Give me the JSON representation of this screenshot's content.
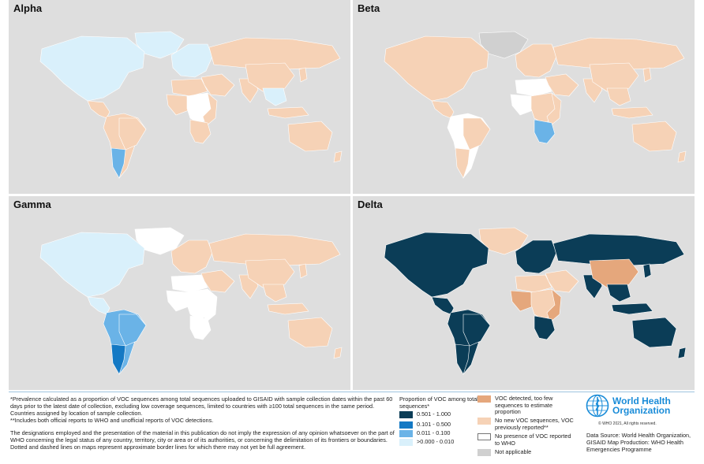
{
  "panels": [
    {
      "id": "alpha",
      "title": "Alpha"
    },
    {
      "id": "beta",
      "title": "Beta"
    },
    {
      "id": "gamma",
      "title": "Gamma"
    },
    {
      "id": "delta",
      "title": "Delta"
    }
  ],
  "colors": {
    "ocean": "#dedede",
    "na": "#d0d0d0",
    "cat1": "#0b3d57",
    "cat2": "#1479c4",
    "cat3": "#6ab3e7",
    "cat4": "#d9f0fb",
    "detected_few": "#e5a77c",
    "previously": "#f6d2b6",
    "none": "#ffffff"
  },
  "map_fills": {
    "alpha": {
      "north_america": "cat4",
      "greenland": "cat4",
      "central_america": "previously",
      "south_america": "previously",
      "brazil": "previously",
      "argentina": "cat3",
      "europe": "cat4",
      "russia": "previously",
      "middle_east": "previously",
      "africa_north": "previously",
      "africa_west": "previously",
      "africa_central": "none",
      "africa_east": "previously",
      "africa_south": "previously",
      "india": "previously",
      "china": "previously",
      "se_asia": "cat4",
      "japan": "previously",
      "indonesia": "previously",
      "australia": "previously",
      "new_zealand": "previously"
    },
    "beta": {
      "north_america": "previously",
      "greenland": "na",
      "central_america": "previously",
      "south_america": "none",
      "brazil": "previously",
      "argentina": "previously",
      "europe": "previously",
      "russia": "previously",
      "middle_east": "previously",
      "africa_north": "none",
      "africa_west": "none",
      "africa_central": "previously",
      "africa_east": "previously",
      "africa_south": "cat3",
      "india": "previously",
      "china": "previously",
      "se_asia": "previously",
      "japan": "previously",
      "indonesia": "previously",
      "australia": "previously",
      "new_zealand": "previously"
    },
    "gamma": {
      "north_america": "cat4",
      "greenland": "none",
      "central_america": "cat4",
      "south_america": "cat3",
      "brazil": "cat3",
      "argentina": "cat2",
      "europe": "previously",
      "russia": "previously",
      "middle_east": "previously",
      "africa_north": "none",
      "africa_west": "none",
      "africa_central": "none",
      "africa_east": "none",
      "africa_south": "none",
      "india": "previously",
      "china": "previously",
      "se_asia": "previously",
      "japan": "previously",
      "indonesia": "previously",
      "australia": "previously",
      "new_zealand": "previously"
    },
    "delta": {
      "north_america": "cat1",
      "greenland": "previously",
      "central_america": "cat1",
      "south_america": "cat1",
      "brazil": "cat1",
      "argentina": "cat1",
      "europe": "cat1",
      "russia": "cat1",
      "middle_east": "previously",
      "africa_north": "previously",
      "africa_west": "detected_few",
      "africa_central": "previously",
      "africa_east": "detected_few",
      "africa_south": "cat1",
      "india": "cat1",
      "china": "detected_few",
      "se_asia": "cat1",
      "japan": "cat1",
      "indonesia": "cat1",
      "australia": "cat1",
      "new_zealand": "cat1"
    }
  },
  "footnotes": {
    "line1": "*Prevalence calculated as a proportion of VOC sequences among total sequences uploaded to GISAID with sample collection dates within the past 60 days prior to the latest date of collection, excluding low coverage sequences, limited to countries with ≥100 total sequences in the same period. Countries assigned by location of sample collection.",
    "line2": "**Includes both official reports to WHO and unofficial reports of VOC detections.",
    "disclaimer": "The designations employed and the presentation of the material in this publication do not imply the expression of any opinion whatsoever on the part of WHO concerning the legal status of any country, territory, city or area or of its authorities, or concerning the delimitation of its frontiers or boundaries. Dotted and dashed lines on maps represent approximate border lines for which there may not yet be full agreement."
  },
  "legend": {
    "title": "Proportion of VOC among total sequences*",
    "ranges": [
      {
        "label": "0.501 - 1.000",
        "color": "#0b3d57"
      },
      {
        "label": "0.101 - 0.500",
        "color": "#1479c4"
      },
      {
        "label": "0.011 - 0.100",
        "color": "#6ab3e7"
      },
      {
        "label": ">0.000 - 0.010",
        "color": "#d9f0fb"
      }
    ],
    "categories": [
      {
        "label": "VOC detected, too few sequences to estimate proportion",
        "color": "#e5a77c"
      },
      {
        "label": "No new VOC sequences, VOC previously reported**",
        "color": "#f6d2b6"
      },
      {
        "label": "No presence of VOC reported to WHO",
        "color": "#ffffff"
      },
      {
        "label": "Not applicable",
        "color": "#d0d0d0"
      }
    ]
  },
  "who": {
    "name_line1": "World Health",
    "name_line2": "Organization",
    "copyright": "© WHO 2021, All rights reserved.",
    "credits": "Data Source: World Health Organization, GISAID Map Production: WHO Health Emergencies Programme"
  }
}
